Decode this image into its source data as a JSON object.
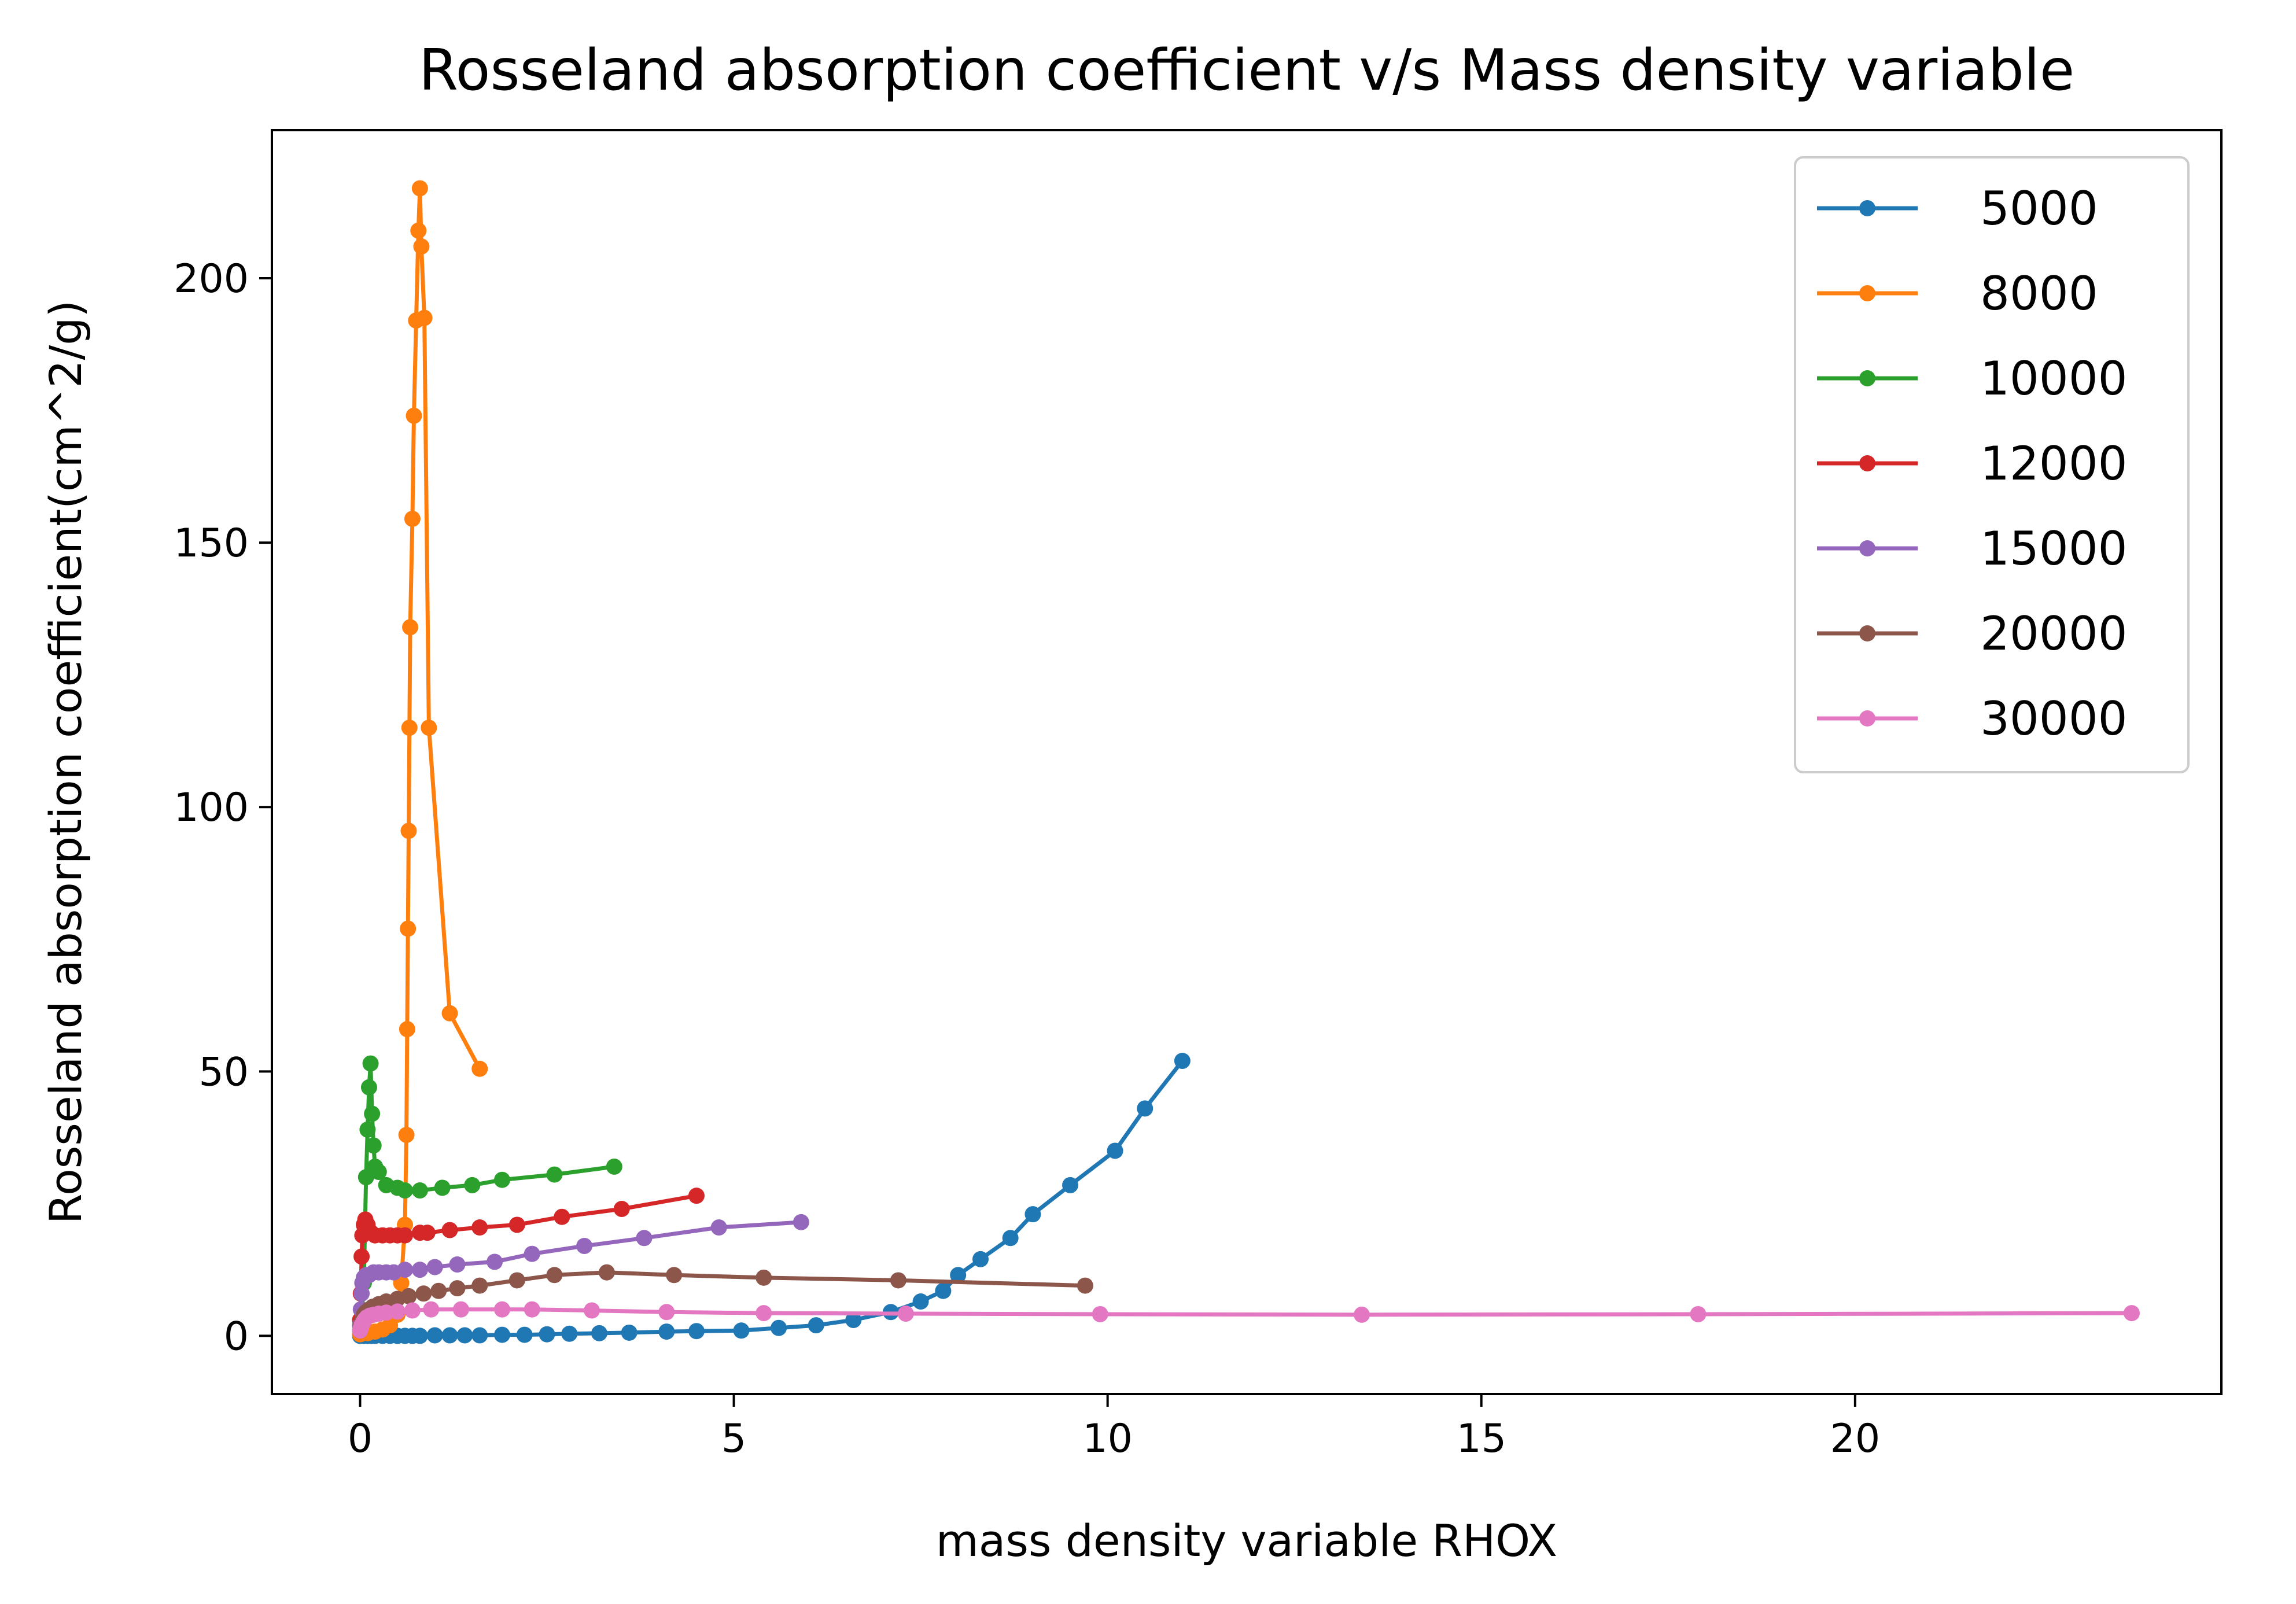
{
  "chart_data": {
    "type": "line",
    "title": "Rosseland absorption coefficient v/s Mass density variable",
    "xlabel": "mass density variable RHOX",
    "ylabel": "Rosseland absorption coefficient(cm^2/g)",
    "xlim": [
      -1.18,
      24.9
    ],
    "ylim": [
      -11,
      228
    ],
    "xticks": [
      0,
      5,
      10,
      15,
      20
    ],
    "yticks": [
      0,
      50,
      100,
      150,
      200
    ],
    "grid": false,
    "legend_position": "top-right",
    "series": [
      {
        "name": "5000",
        "color": "#1f77b4",
        "x": [
          0.0,
          0.05,
          0.1,
          0.15,
          0.2,
          0.3,
          0.4,
          0.5,
          0.6,
          0.7,
          0.8,
          1.0,
          1.2,
          1.4,
          1.6,
          1.9,
          2.2,
          2.5,
          2.8,
          3.2,
          3.6,
          4.1,
          4.5,
          5.1,
          5.6,
          6.1,
          6.6,
          7.1,
          7.5,
          7.8,
          8.0,
          8.3,
          8.7,
          9.0,
          9.5,
          10.1,
          10.5,
          11.0
        ],
        "y": [
          0.0,
          0.0,
          0.0,
          0.0,
          0.0,
          0.0,
          0.0,
          0.0,
          0.0,
          0.0,
          0.0,
          0.1,
          0.1,
          0.1,
          0.1,
          0.2,
          0.2,
          0.3,
          0.4,
          0.5,
          0.6,
          0.8,
          0.9,
          1.0,
          1.5,
          2.0,
          3.0,
          4.5,
          6.5,
          8.5,
          11.5,
          14.5,
          18.5,
          23.0,
          28.5,
          35.0,
          43.0,
          52.0
        ]
      },
      {
        "name": "8000",
        "color": "#ff7f0e",
        "x": [
          0.0,
          0.1,
          0.2,
          0.3,
          0.4,
          0.5,
          0.55,
          0.6,
          0.62,
          0.63,
          0.64,
          0.65,
          0.66,
          0.67,
          0.7,
          0.72,
          0.75,
          0.78,
          0.8,
          0.82,
          0.86,
          0.92,
          1.2,
          1.6
        ],
        "y": [
          0.3,
          0.5,
          0.8,
          1.2,
          2.0,
          4.0,
          10.0,
          21.0,
          38.0,
          58.0,
          77.0,
          95.5,
          115.0,
          134.0,
          154.5,
          174.0,
          192.0,
          209.0,
          217.0,
          206.0,
          192.5,
          115.0,
          61.0,
          50.5
        ]
      },
      {
        "name": "10000",
        "color": "#2ca02c",
        "x": [
          0.0,
          0.02,
          0.05,
          0.08,
          0.1,
          0.12,
          0.14,
          0.16,
          0.18,
          0.2,
          0.25,
          0.35,
          0.5,
          0.6,
          0.8,
          1.1,
          1.5,
          1.9,
          2.6,
          3.4
        ],
        "y": [
          1.0,
          3.0,
          10.0,
          30.0,
          39.0,
          47.0,
          51.5,
          42.0,
          36.0,
          32.0,
          31.0,
          28.5,
          28.0,
          27.5,
          27.5,
          28.0,
          28.5,
          29.5,
          30.5,
          32.0
        ]
      },
      {
        "name": "12000",
        "color": "#d62728",
        "x": [
          0.0,
          0.01,
          0.02,
          0.03,
          0.05,
          0.07,
          0.1,
          0.15,
          0.2,
          0.3,
          0.4,
          0.5,
          0.6,
          0.8,
          0.9,
          1.2,
          1.6,
          2.1,
          2.7,
          3.5,
          4.5
        ],
        "y": [
          3.0,
          8.0,
          15.0,
          19.0,
          21.0,
          22.0,
          21.0,
          19.5,
          19.0,
          19.0,
          19.0,
          19.0,
          19.0,
          19.5,
          19.5,
          20.0,
          20.5,
          21.0,
          22.5,
          24.0,
          26.5
        ]
      },
      {
        "name": "15000",
        "color": "#9467bd",
        "x": [
          0.0,
          0.01,
          0.02,
          0.03,
          0.05,
          0.08,
          0.12,
          0.18,
          0.25,
          0.35,
          0.45,
          0.6,
          0.8,
          1.0,
          1.3,
          1.8,
          2.3,
          3.0,
          3.8,
          4.8,
          5.9
        ],
        "y": [
          2.0,
          5.0,
          8.0,
          10.0,
          11.0,
          11.5,
          11.5,
          12.0,
          12.0,
          12.0,
          12.0,
          12.5,
          12.5,
          13.0,
          13.5,
          14.0,
          15.5,
          17.0,
          18.5,
          20.5,
          21.5
        ]
      },
      {
        "name": "20000",
        "color": "#8c564b",
        "x": [
          0.0,
          0.01,
          0.03,
          0.05,
          0.08,
          0.12,
          0.17,
          0.25,
          0.35,
          0.5,
          0.65,
          0.85,
          1.05,
          1.3,
          1.6,
          2.1,
          2.6,
          3.3,
          4.2,
          5.4,
          7.2,
          9.7
        ],
        "y": [
          1.0,
          2.0,
          3.0,
          4.0,
          4.5,
          5.0,
          5.5,
          6.0,
          6.5,
          7.0,
          7.5,
          8.0,
          8.5,
          9.0,
          9.5,
          10.5,
          11.5,
          12.0,
          11.5,
          11.0,
          10.5,
          9.5
        ]
      },
      {
        "name": "30000",
        "color": "#e377c2",
        "x": [
          0.0,
          0.01,
          0.02,
          0.04,
          0.06,
          0.09,
          0.13,
          0.18,
          0.25,
          0.35,
          0.5,
          0.7,
          0.95,
          1.35,
          1.9,
          2.3,
          3.1,
          4.1,
          5.4,
          7.3,
          9.9,
          13.4,
          17.9,
          23.7
        ],
        "y": [
          1.0,
          1.5,
          2.0,
          2.5,
          3.0,
          3.5,
          3.8,
          4.0,
          4.2,
          4.4,
          4.6,
          4.8,
          5.0,
          5.0,
          5.0,
          5.0,
          4.8,
          4.5,
          4.3,
          4.2,
          4.1,
          4.0,
          4.1,
          4.3
        ]
      }
    ]
  }
}
